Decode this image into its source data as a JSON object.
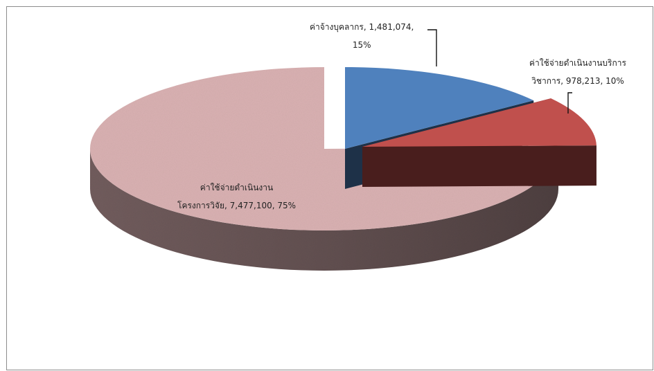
{
  "chart_data": {
    "type": "pie",
    "title": "",
    "slices": [
      {
        "label_line1": "ค่าจ้างบุคลากร, 1,481,074,",
        "label_line2": "15%",
        "value": 1481074,
        "percent": 15,
        "color": "#4f81bd",
        "exploded": true
      },
      {
        "label_line1": "ค่าใช้จ่ายดำเนินงานบริการ",
        "label_line2": "วิชาการ, 978,213, 10%",
        "value": 978213,
        "percent": 10,
        "color": "#c0504d",
        "exploded": false
      },
      {
        "label_line1": "ค่าใช้จ่ายดำเนินงาน",
        "label_line2": "โครงการวิจัย, 7,477,100, 75%",
        "value": 7477100,
        "percent": 75,
        "color": "#d9b1b2",
        "exploded": false
      }
    ],
    "legend": "none",
    "three_d": true
  }
}
